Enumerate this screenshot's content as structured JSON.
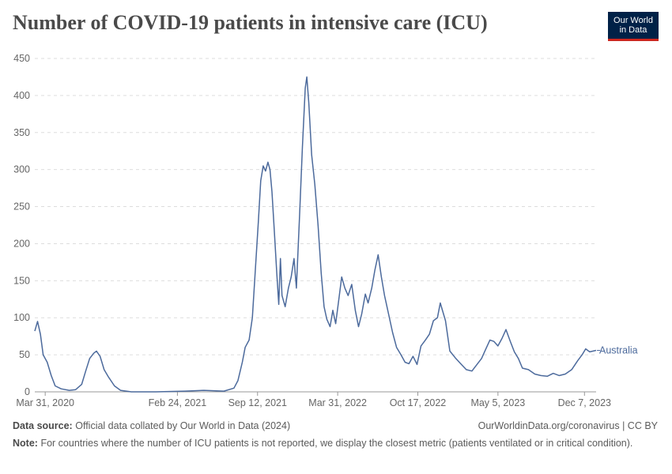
{
  "title": "Number of COVID-19 patients in intensive care (ICU)",
  "logo": {
    "line1": "Our World",
    "line2": "in Data",
    "bg": "#002147",
    "accent": "#ce261e"
  },
  "footer": {
    "source_label": "Data source:",
    "source_text": "Official data collated by Our World in Data (2024)",
    "credit": "OurWorldinData.org/coronavirus | CC BY",
    "note_label": "Note:",
    "note_text": "For countries where the number of ICU patients is not reported, we display the closest metric (patients ventilated or in critical condition)."
  },
  "chart_data": {
    "type": "line",
    "title": "Number of COVID-19 patients in intensive care (ICU)",
    "xlabel": "",
    "ylabel": "",
    "ylim": [
      0,
      450
    ],
    "yticks": [
      0,
      50,
      100,
      150,
      200,
      250,
      300,
      350,
      400,
      450
    ],
    "xlim": [
      "2020-03-05",
      "2024-01-05"
    ],
    "xticks": [
      {
        "date": "2020-03-31",
        "label": "Mar 31, 2020"
      },
      {
        "date": "2021-02-24",
        "label": "Feb 24, 2021"
      },
      {
        "date": "2021-09-12",
        "label": "Sep 12, 2021"
      },
      {
        "date": "2022-03-31",
        "label": "Mar 31, 2022"
      },
      {
        "date": "2022-10-17",
        "label": "Oct 17, 2022"
      },
      {
        "date": "2023-05-05",
        "label": "May 5, 2023"
      },
      {
        "date": "2023-12-07",
        "label": "Dec 7, 2023"
      }
    ],
    "grid": "horizontal-dashed",
    "legend": "end-label",
    "series": [
      {
        "name": "Australia",
        "color": "#4c6a9c",
        "points": [
          [
            "2020-03-05",
            82
          ],
          [
            "2020-03-12",
            95
          ],
          [
            "2020-03-19",
            78
          ],
          [
            "2020-03-26",
            50
          ],
          [
            "2020-04-05",
            40
          ],
          [
            "2020-04-15",
            22
          ],
          [
            "2020-04-25",
            8
          ],
          [
            "2020-05-10",
            4
          ],
          [
            "2020-05-30",
            2
          ],
          [
            "2020-06-15",
            3
          ],
          [
            "2020-06-30",
            10
          ],
          [
            "2020-07-10",
            28
          ],
          [
            "2020-07-20",
            45
          ],
          [
            "2020-07-30",
            52
          ],
          [
            "2020-08-06",
            55
          ],
          [
            "2020-08-15",
            48
          ],
          [
            "2020-08-25",
            30
          ],
          [
            "2020-09-05",
            20
          ],
          [
            "2020-09-20",
            8
          ],
          [
            "2020-10-05",
            2
          ],
          [
            "2020-11-01",
            0
          ],
          [
            "2021-01-01",
            0
          ],
          [
            "2021-03-15",
            1
          ],
          [
            "2021-05-01",
            2
          ],
          [
            "2021-06-20",
            1
          ],
          [
            "2021-07-15",
            5
          ],
          [
            "2021-07-25",
            15
          ],
          [
            "2021-08-05",
            40
          ],
          [
            "2021-08-12",
            60
          ],
          [
            "2021-08-22",
            70
          ],
          [
            "2021-08-30",
            100
          ],
          [
            "2021-09-06",
            160
          ],
          [
            "2021-09-14",
            230
          ],
          [
            "2021-09-20",
            285
          ],
          [
            "2021-09-26",
            305
          ],
          [
            "2021-10-02",
            298
          ],
          [
            "2021-10-08",
            310
          ],
          [
            "2021-10-13",
            300
          ],
          [
            "2021-10-18",
            270
          ],
          [
            "2021-10-24",
            215
          ],
          [
            "2021-10-30",
            160
          ],
          [
            "2021-11-04",
            118
          ],
          [
            "2021-11-08",
            180
          ],
          [
            "2021-11-12",
            130
          ],
          [
            "2021-11-20",
            115
          ],
          [
            "2021-11-28",
            140
          ],
          [
            "2021-12-05",
            155
          ],
          [
            "2021-12-12",
            180
          ],
          [
            "2021-12-18",
            140
          ],
          [
            "2021-12-26",
            240
          ],
          [
            "2022-01-02",
            330
          ],
          [
            "2022-01-09",
            410
          ],
          [
            "2022-01-13",
            425
          ],
          [
            "2022-01-18",
            390
          ],
          [
            "2022-01-25",
            320
          ],
          [
            "2022-02-02",
            280
          ],
          [
            "2022-02-10",
            225
          ],
          [
            "2022-02-18",
            160
          ],
          [
            "2022-02-25",
            115
          ],
          [
            "2022-03-04",
            98
          ],
          [
            "2022-03-12",
            88
          ],
          [
            "2022-03-19",
            110
          ],
          [
            "2022-03-26",
            92
          ],
          [
            "2022-04-03",
            125
          ],
          [
            "2022-04-10",
            155
          ],
          [
            "2022-04-18",
            140
          ],
          [
            "2022-04-26",
            130
          ],
          [
            "2022-05-05",
            145
          ],
          [
            "2022-05-14",
            110
          ],
          [
            "2022-05-22",
            88
          ],
          [
            "2022-05-30",
            105
          ],
          [
            "2022-06-08",
            132
          ],
          [
            "2022-06-15",
            120
          ],
          [
            "2022-06-24",
            140
          ],
          [
            "2022-07-02",
            165
          ],
          [
            "2022-07-10",
            185
          ],
          [
            "2022-07-18",
            155
          ],
          [
            "2022-07-26",
            130
          ],
          [
            "2022-08-05",
            105
          ],
          [
            "2022-08-15",
            80
          ],
          [
            "2022-08-25",
            60
          ],
          [
            "2022-09-05",
            50
          ],
          [
            "2022-09-15",
            40
          ],
          [
            "2022-09-25",
            38
          ],
          [
            "2022-10-05",
            48
          ],
          [
            "2022-10-15",
            37
          ],
          [
            "2022-10-25",
            62
          ],
          [
            "2022-11-05",
            70
          ],
          [
            "2022-11-15",
            78
          ],
          [
            "2022-11-25",
            96
          ],
          [
            "2022-12-05",
            100
          ],
          [
            "2022-12-12",
            120
          ],
          [
            "2022-12-25",
            96
          ],
          [
            "2023-01-05",
            55
          ],
          [
            "2023-01-20",
            45
          ],
          [
            "2023-02-01",
            38
          ],
          [
            "2023-02-15",
            30
          ],
          [
            "2023-03-01",
            28
          ],
          [
            "2023-03-15",
            38
          ],
          [
            "2023-03-25",
            45
          ],
          [
            "2023-04-05",
            58
          ],
          [
            "2023-04-15",
            70
          ],
          [
            "2023-04-25",
            68
          ],
          [
            "2023-05-05",
            62
          ],
          [
            "2023-05-15",
            72
          ],
          [
            "2023-05-25",
            84
          ],
          [
            "2023-06-05",
            68
          ],
          [
            "2023-06-15",
            54
          ],
          [
            "2023-06-25",
            45
          ],
          [
            "2023-07-05",
            32
          ],
          [
            "2023-07-20",
            30
          ],
          [
            "2023-08-05",
            24
          ],
          [
            "2023-08-20",
            22
          ],
          [
            "2023-09-05",
            21
          ],
          [
            "2023-09-20",
            25
          ],
          [
            "2023-10-05",
            22
          ],
          [
            "2023-10-20",
            24
          ],
          [
            "2023-11-05",
            30
          ],
          [
            "2023-11-20",
            42
          ],
          [
            "2023-12-01",
            50
          ],
          [
            "2023-12-10",
            58
          ],
          [
            "2023-12-20",
            54
          ],
          [
            "2024-01-05",
            56
          ]
        ]
      }
    ]
  }
}
